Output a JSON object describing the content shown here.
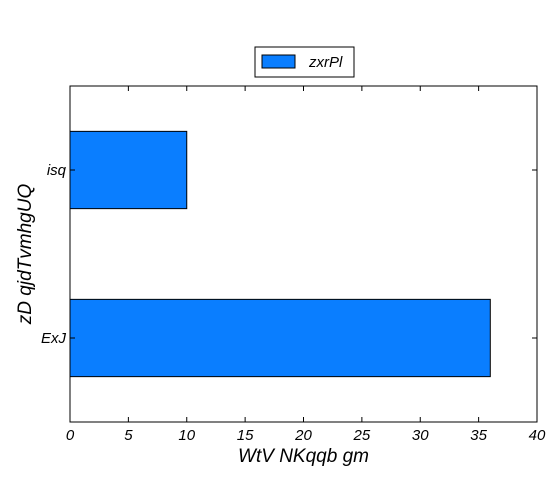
{
  "chart_data": {
    "type": "bar",
    "orientation": "horizontal",
    "categories": [
      "ExJ",
      "isq"
    ],
    "series": [
      {
        "name": "zxrPl",
        "values": [
          36,
          10
        ],
        "color": "#0a7eff"
      }
    ],
    "xlabel": "WtV NKqqb gm",
    "ylabel": "zD qjdTvmhgUQ",
    "xlim": [
      0,
      40
    ],
    "xticks": [
      0,
      5,
      10,
      15,
      20,
      25,
      30,
      35,
      40
    ],
    "grid": false,
    "legend": "top-center"
  }
}
